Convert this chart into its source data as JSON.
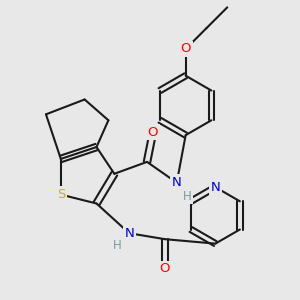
{
  "background_color": "#e8e8e8",
  "bond_color": "#1a1a1a",
  "atom_colors": {
    "O": "#ff0000",
    "N": "#0000cc",
    "S": "#bbbb00",
    "H": "#7a9a9a"
  },
  "font_size": 8.5,
  "figsize": [
    3.0,
    3.0
  ],
  "dpi": 100,
  "lw": 1.5
}
